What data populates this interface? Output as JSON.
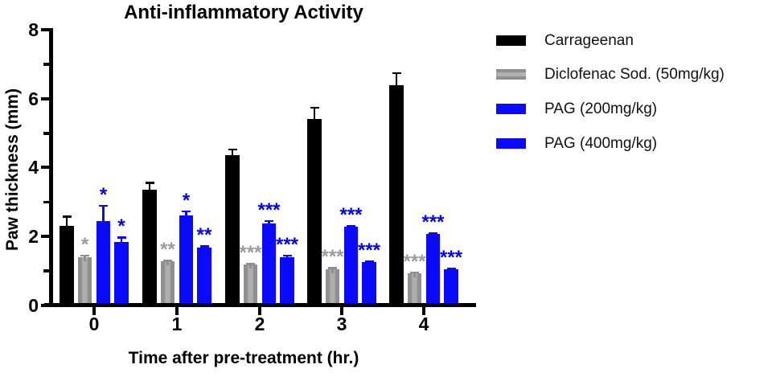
{
  "chart_data": {
    "type": "bar",
    "title": "Anti-inflammatory Activity",
    "xlabel": "Time after pre-treatment (hr.)",
    "ylabel": "Paw thickness (mm)",
    "ylim": [
      0,
      8
    ],
    "yticks_major": [
      0,
      2,
      4,
      6,
      8
    ],
    "yticks_minor": [
      1,
      3,
      5,
      7
    ],
    "categories": [
      "0",
      "1",
      "2",
      "3",
      "4"
    ],
    "grid": false,
    "legend_position": "right",
    "error_bars": "upper_sem",
    "series": [
      {
        "name": "Carrageenan",
        "color": "#000000",
        "fill_style": "solid-black",
        "values": [
          2.3,
          3.35,
          4.35,
          5.4,
          6.4
        ],
        "errors": [
          0.3,
          0.23,
          0.2,
          0.37,
          0.37
        ],
        "significance": [
          "",
          "",
          "",
          "",
          ""
        ],
        "sig_color": "#000000"
      },
      {
        "name": "Diclofenac Sod. (50mg/kg)",
        "color": "#8f8f8f",
        "fill_style": "striped-gray",
        "values": [
          1.38,
          1.27,
          1.17,
          1.05,
          0.92
        ],
        "errors": [
          0.09,
          0.05,
          0.05,
          0.05,
          0.06
        ],
        "significance": [
          "*",
          "**",
          "***",
          "***",
          "***"
        ],
        "sig_color": "#9c9c9c"
      },
      {
        "name": "PAG (200mg/kg)",
        "color": "#0a0aff",
        "fill_style": "solid-blue",
        "values": [
          2.45,
          2.6,
          2.38,
          2.28,
          2.06
        ],
        "errors": [
          0.46,
          0.15,
          0.09,
          0.05,
          0.05
        ],
        "significance": [
          "*",
          "*",
          "***",
          "***",
          "***"
        ],
        "sig_color": "#0000ff"
      },
      {
        "name": "PAG (400mg/kg)",
        "color": "#0a0aff",
        "fill_style": "solid-blue",
        "values": [
          1.83,
          1.68,
          1.38,
          1.25,
          1.05
        ],
        "errors": [
          0.16,
          0.05,
          0.09,
          0.05,
          0.04
        ],
        "significance": [
          "*",
          "**",
          "***",
          "***",
          "***"
        ],
        "sig_color": "#0000ff"
      }
    ]
  }
}
